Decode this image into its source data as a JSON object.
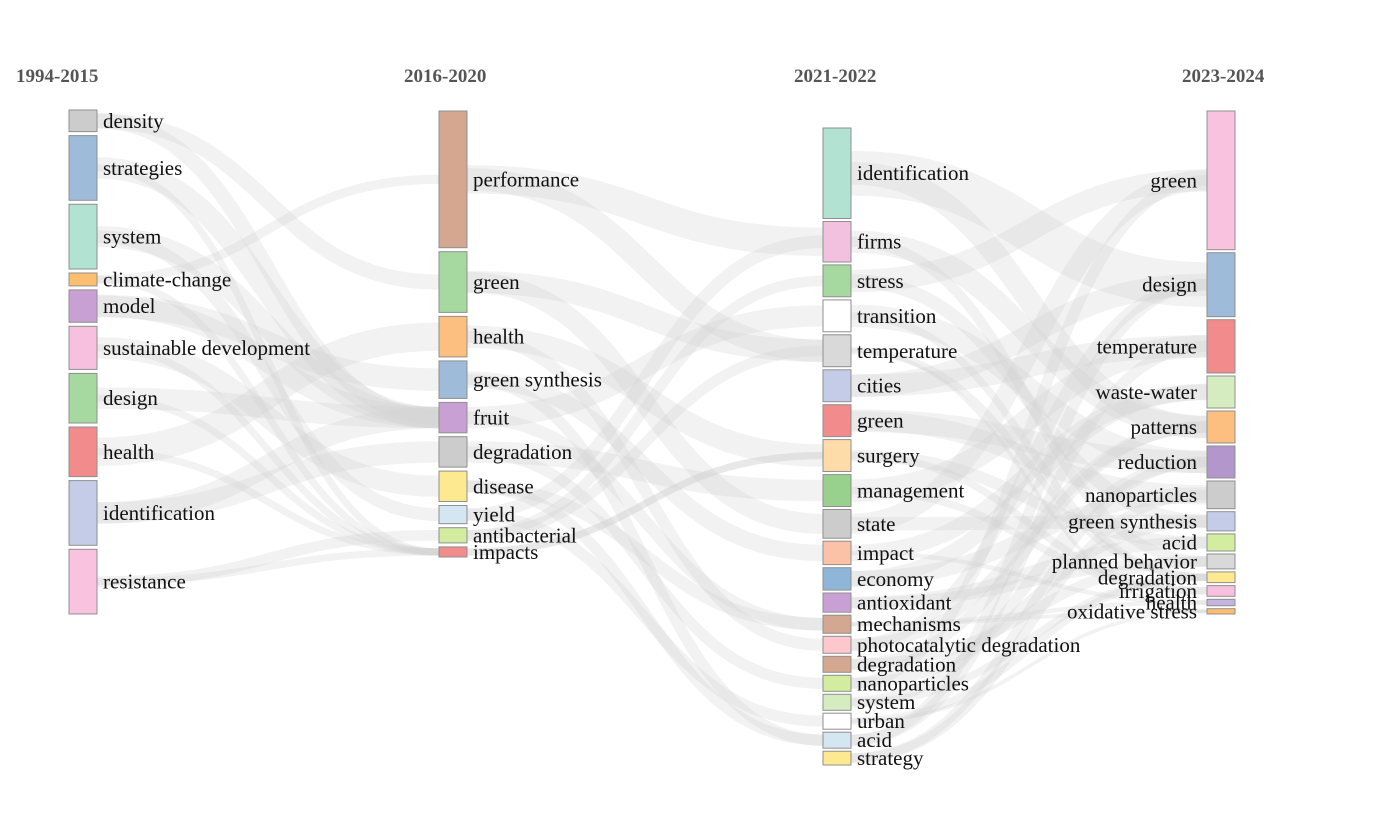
{
  "periods": [
    "1994-2015",
    "2016-2020",
    "2021-2022",
    "2023-2024"
  ],
  "columns": [
    {
      "period": "1994-2015",
      "label_side": "right",
      "nodes": [
        {
          "label": "density",
          "color": "#cccccc",
          "weight": 1
        },
        {
          "label": "strategies",
          "color": "#9ebbd9",
          "weight": 3
        },
        {
          "label": "system",
          "color": "#b2e2d2",
          "weight": 3
        },
        {
          "label": "climate-change",
          "color": "#fdbf6f",
          "weight": 0.6
        },
        {
          "label": "model",
          "color": "#c9a0d4",
          "weight": 1.5
        },
        {
          "label": "sustainable development",
          "color": "#f7c0de",
          "weight": 2
        },
        {
          "label": "design",
          "color": "#a6d9a0",
          "weight": 2.3
        },
        {
          "label": "health",
          "color": "#f28b8b",
          "weight": 2.3
        },
        {
          "label": "identification",
          "color": "#c5cce8",
          "weight": 3
        },
        {
          "label": "resistance",
          "color": "#f9c3e0",
          "weight": 3
        }
      ]
    },
    {
      "period": "2016-2020",
      "label_side": "right",
      "nodes": [
        {
          "label": "performance",
          "color": "#d4a890",
          "weight": 13.5
        },
        {
          "label": "green",
          "color": "#a6d9a0",
          "weight": 6
        },
        {
          "label": "health",
          "color": "#fdbf80",
          "weight": 4
        },
        {
          "label": "green synthesis",
          "color": "#9ebbd9",
          "weight": 3.7
        },
        {
          "label": "fruit",
          "color": "#c9a0d4",
          "weight": 3
        },
        {
          "label": "degradation",
          "color": "#cccccc",
          "weight": 3
        },
        {
          "label": "disease",
          "color": "#fde98f",
          "weight": 3
        },
        {
          "label": "yield",
          "color": "#d4e6f1",
          "weight": 1.8
        },
        {
          "label": "antibacterial",
          "color": "#d2eca0",
          "weight": 1.5
        },
        {
          "label": "impacts",
          "color": "#f28b8b",
          "weight": 1
        }
      ]
    },
    {
      "period": "2021-2022",
      "label_side": "right",
      "nodes": [
        {
          "label": "identification",
          "color": "#b2e2d2",
          "weight": 8.5
        },
        {
          "label": "firms",
          "color": "#f2c1e0",
          "weight": 3.8
        },
        {
          "label": "stress",
          "color": "#a6d9a0",
          "weight": 3
        },
        {
          "label": "transition",
          "color": "#ffffff",
          "weight": 3
        },
        {
          "label": "temperature",
          "color": "#d9d9d9",
          "weight": 3
        },
        {
          "label": "cities",
          "color": "#c5cce8",
          "weight": 3
        },
        {
          "label": "green",
          "color": "#f28b8b",
          "weight": 3
        },
        {
          "label": "surgery",
          "color": "#fddcaa",
          "weight": 3
        },
        {
          "label": "management",
          "color": "#98d08e",
          "weight": 3
        },
        {
          "label": "state",
          "color": "#cccccc",
          "weight": 2.7
        },
        {
          "label": "impact",
          "color": "#fcc2a8",
          "weight": 2.2
        },
        {
          "label": "economy",
          "color": "#8fb5d8",
          "weight": 2.1
        },
        {
          "label": "antioxidant",
          "color": "#c9a0d4",
          "weight": 1.8
        },
        {
          "label": "mechanisms",
          "color": "#d4a890",
          "weight": 1.7
        },
        {
          "label": "photocatalytic degradation",
          "color": "#fcc8cc",
          "weight": 1.6
        },
        {
          "label": "degradation",
          "color": "#d4a890",
          "weight": 1.5
        },
        {
          "label": "nanoparticles",
          "color": "#d2eca0",
          "weight": 1.5
        },
        {
          "label": "system",
          "color": "#d5ecc0",
          "weight": 1.5
        },
        {
          "label": "urban",
          "color": "#ffffff",
          "weight": 1.5
        },
        {
          "label": "acid",
          "color": "#d4e6f1",
          "weight": 1.5
        },
        {
          "label": "strategy",
          "color": "#fde98f",
          "weight": 1.3
        }
      ]
    },
    {
      "period": "2023-2024",
      "label_side": "left",
      "nodes": [
        {
          "label": "green",
          "color": "#f9c3e0",
          "weight": 13
        },
        {
          "label": "design",
          "color": "#9ebbd9",
          "weight": 6
        },
        {
          "label": "temperature",
          "color": "#f28b8b",
          "weight": 5
        },
        {
          "label": "waste-water",
          "color": "#d5ecc0",
          "weight": 3
        },
        {
          "label": "patterns",
          "color": "#fdbf80",
          "weight": 3
        },
        {
          "label": "reduction",
          "color": "#b396cc",
          "weight": 3
        },
        {
          "label": "nanoparticles",
          "color": "#cccccc",
          "weight": 2.6
        },
        {
          "label": "green synthesis",
          "color": "#c5cce8",
          "weight": 1.8
        },
        {
          "label": "acid",
          "color": "#d2eca0",
          "weight": 1.6
        },
        {
          "label": "planned behavior",
          "color": "#d9d9d9",
          "weight": 1.4
        },
        {
          "label": "degradation",
          "color": "#fde98f",
          "weight": 1
        },
        {
          "label": "irrigation",
          "color": "#f7c0de",
          "weight": 1
        },
        {
          "label": "health",
          "color": "#c5b4dd",
          "weight": 0.6
        },
        {
          "label": "oxidative stress",
          "color": "#fdbf6f",
          "weight": 0.5
        }
      ]
    }
  ]
}
